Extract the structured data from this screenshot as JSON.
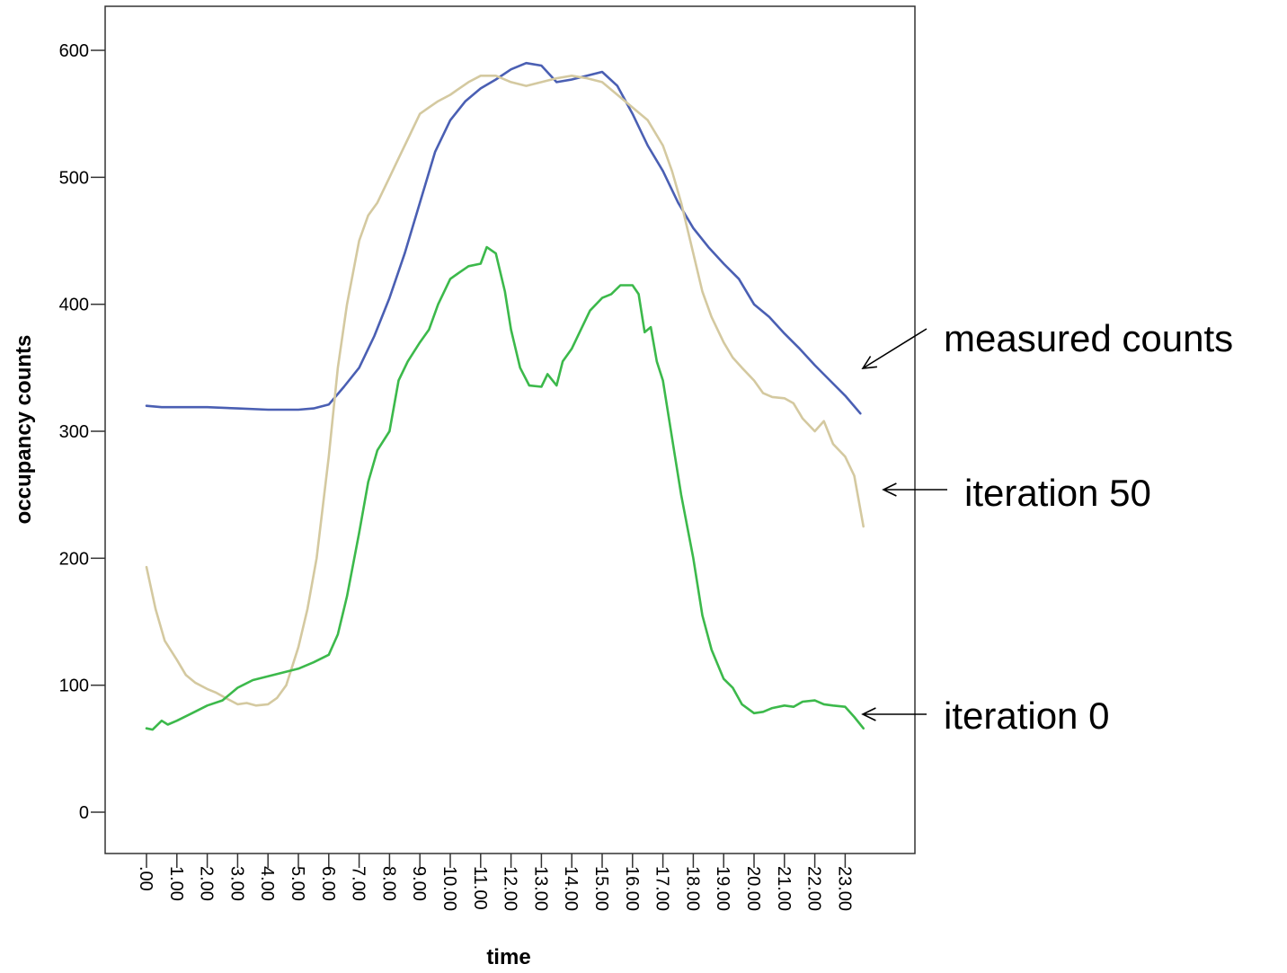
{
  "chart_data": {
    "type": "line",
    "title": "",
    "xlabel": "time",
    "ylabel": "occupancy counts",
    "ylim": [
      -30,
      640
    ],
    "xlim": [
      -0.1,
      25.8
    ],
    "yticks": [
      0,
      100,
      200,
      300,
      400,
      500,
      600
    ],
    "yticklabels": [
      "0",
      "100",
      "200",
      "300",
      "400",
      "500",
      "600"
    ],
    "xticks": [
      0,
      1,
      2,
      3,
      4,
      5,
      6,
      7,
      8,
      9,
      10,
      11,
      12,
      13,
      14,
      15,
      16,
      17,
      18,
      19,
      20,
      21,
      22,
      23
    ],
    "xticklabels": [
      ".00",
      "1.00",
      "2.00",
      "3.00",
      "4.00",
      "5.00",
      "6.00",
      "7.00",
      "8.00",
      "9.00",
      "10.00",
      "11.00",
      "12.00",
      "13.00",
      "14.00",
      "15.00",
      "16.00",
      "17.00",
      "18.00",
      "19.00",
      "20.00",
      "21.00",
      "22.00",
      "23.00"
    ],
    "grid": false,
    "legend": "none",
    "series": [
      {
        "name": "measured counts",
        "color": "#4a5fb3",
        "points": [
          [
            0,
            320
          ],
          [
            0.5,
            319
          ],
          [
            1,
            319
          ],
          [
            2,
            319
          ],
          [
            3,
            318
          ],
          [
            4,
            317
          ],
          [
            5,
            317
          ],
          [
            5.5,
            318
          ],
          [
            6,
            321
          ],
          [
            6.5,
            335
          ],
          [
            7,
            350
          ],
          [
            7.5,
            375
          ],
          [
            8,
            405
          ],
          [
            8.5,
            440
          ],
          [
            9,
            480
          ],
          [
            9.5,
            520
          ],
          [
            10,
            545
          ],
          [
            10.5,
            560
          ],
          [
            11,
            570
          ],
          [
            11.5,
            577
          ],
          [
            12,
            585
          ],
          [
            12.5,
            590
          ],
          [
            13,
            588
          ],
          [
            13.5,
            575
          ],
          [
            14,
            577
          ],
          [
            14.5,
            580
          ],
          [
            15,
            583
          ],
          [
            15.5,
            572
          ],
          [
            16,
            550
          ],
          [
            16.5,
            525
          ],
          [
            17,
            505
          ],
          [
            17.5,
            480
          ],
          [
            18,
            460
          ],
          [
            18.5,
            445
          ],
          [
            19,
            432
          ],
          [
            19.5,
            420
          ],
          [
            20,
            400
          ],
          [
            20.5,
            390
          ],
          [
            21,
            377
          ],
          [
            21.5,
            365
          ],
          [
            22,
            352
          ],
          [
            22.5,
            340
          ],
          [
            23,
            328
          ],
          [
            23.5,
            314
          ]
        ]
      },
      {
        "name": "iteration 50",
        "color": "#d4c9a0",
        "points": [
          [
            0,
            193
          ],
          [
            0.3,
            160
          ],
          [
            0.6,
            135
          ],
          [
            1,
            120
          ],
          [
            1.3,
            108
          ],
          [
            1.6,
            102
          ],
          [
            2,
            97
          ],
          [
            2.3,
            94
          ],
          [
            2.6,
            90
          ],
          [
            3,
            85
          ],
          [
            3.3,
            86
          ],
          [
            3.6,
            84
          ],
          [
            4,
            85
          ],
          [
            4.3,
            90
          ],
          [
            4.6,
            100
          ],
          [
            5,
            130
          ],
          [
            5.3,
            160
          ],
          [
            5.6,
            200
          ],
          [
            6,
            280
          ],
          [
            6.3,
            350
          ],
          [
            6.6,
            400
          ],
          [
            7,
            450
          ],
          [
            7.3,
            470
          ],
          [
            7.6,
            480
          ],
          [
            8,
            500
          ],
          [
            8.3,
            515
          ],
          [
            8.6,
            530
          ],
          [
            9,
            550
          ],
          [
            9.3,
            555
          ],
          [
            9.6,
            560
          ],
          [
            10,
            565
          ],
          [
            10.3,
            570
          ],
          [
            10.6,
            575
          ],
          [
            11,
            580
          ],
          [
            11.5,
            580
          ],
          [
            12,
            575
          ],
          [
            12.5,
            572
          ],
          [
            13,
            575
          ],
          [
            13.5,
            578
          ],
          [
            14,
            580
          ],
          [
            14.5,
            578
          ],
          [
            15,
            575
          ],
          [
            15.5,
            565
          ],
          [
            16,
            555
          ],
          [
            16.5,
            545
          ],
          [
            17,
            525
          ],
          [
            17.3,
            505
          ],
          [
            17.6,
            480
          ],
          [
            18,
            440
          ],
          [
            18.3,
            410
          ],
          [
            18.6,
            390
          ],
          [
            19,
            370
          ],
          [
            19.3,
            358
          ],
          [
            19.6,
            350
          ],
          [
            20,
            340
          ],
          [
            20.3,
            330
          ],
          [
            20.6,
            327
          ],
          [
            21,
            326
          ],
          [
            21.3,
            322
          ],
          [
            21.6,
            310
          ],
          [
            22,
            300
          ],
          [
            22.3,
            308
          ],
          [
            22.6,
            290
          ],
          [
            23,
            280
          ],
          [
            23.3,
            265
          ],
          [
            23.6,
            225
          ]
        ]
      },
      {
        "name": "iteration 0",
        "color": "#3cb94b",
        "points": [
          [
            0,
            66
          ],
          [
            0.2,
            65
          ],
          [
            0.5,
            72
          ],
          [
            0.7,
            69
          ],
          [
            1,
            72
          ],
          [
            1.5,
            78
          ],
          [
            2,
            84
          ],
          [
            2.5,
            88
          ],
          [
            3,
            98
          ],
          [
            3.5,
            104
          ],
          [
            4,
            107
          ],
          [
            4.5,
            110
          ],
          [
            5,
            113
          ],
          [
            5.5,
            118
          ],
          [
            6,
            124
          ],
          [
            6.3,
            140
          ],
          [
            6.6,
            170
          ],
          [
            7,
            220
          ],
          [
            7.3,
            260
          ],
          [
            7.6,
            285
          ],
          [
            8,
            300
          ],
          [
            8.3,
            340
          ],
          [
            8.6,
            355
          ],
          [
            9,
            370
          ],
          [
            9.3,
            380
          ],
          [
            9.6,
            400
          ],
          [
            10,
            420
          ],
          [
            10.3,
            425
          ],
          [
            10.6,
            430
          ],
          [
            11,
            432
          ],
          [
            11.2,
            445
          ],
          [
            11.5,
            440
          ],
          [
            11.8,
            410
          ],
          [
            12,
            380
          ],
          [
            12.3,
            350
          ],
          [
            12.6,
            336
          ],
          [
            13,
            335
          ],
          [
            13.2,
            345
          ],
          [
            13.5,
            336
          ],
          [
            13.7,
            355
          ],
          [
            14,
            365
          ],
          [
            14.3,
            380
          ],
          [
            14.6,
            395
          ],
          [
            15,
            405
          ],
          [
            15.3,
            408
          ],
          [
            15.6,
            415
          ],
          [
            16,
            415
          ],
          [
            16.2,
            408
          ],
          [
            16.4,
            378
          ],
          [
            16.6,
            382
          ],
          [
            16.8,
            355
          ],
          [
            17,
            340
          ],
          [
            17.3,
            295
          ],
          [
            17.6,
            250
          ],
          [
            18,
            200
          ],
          [
            18.3,
            155
          ],
          [
            18.6,
            128
          ],
          [
            19,
            105
          ],
          [
            19.3,
            98
          ],
          [
            19.6,
            85
          ],
          [
            20,
            78
          ],
          [
            20.3,
            79
          ],
          [
            20.6,
            82
          ],
          [
            21,
            84
          ],
          [
            21.3,
            83
          ],
          [
            21.6,
            87
          ],
          [
            22,
            88
          ],
          [
            22.3,
            85
          ],
          [
            22.6,
            84
          ],
          [
            23,
            83
          ],
          [
            23.3,
            75
          ],
          [
            23.6,
            66
          ]
        ]
      }
    ],
    "annotations": [
      {
        "text": "measured counts",
        "series": "measured counts"
      },
      {
        "text": "iteration 50",
        "series": "iteration 50"
      },
      {
        "text": "iteration 0",
        "series": "iteration 0"
      }
    ]
  }
}
